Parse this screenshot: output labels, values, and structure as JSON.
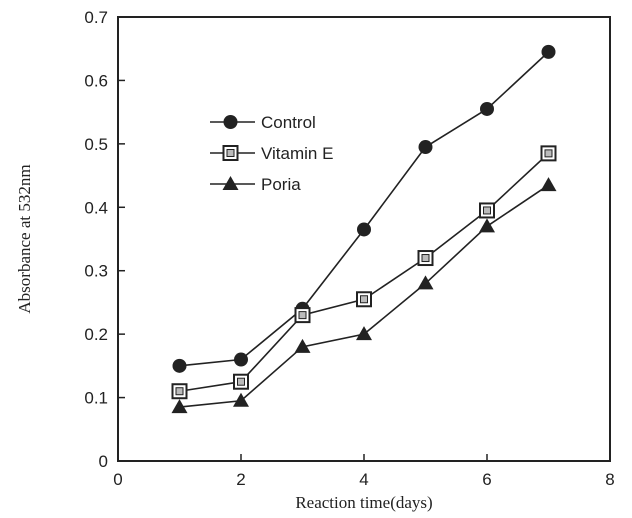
{
  "chart_data": {
    "type": "line",
    "title": "",
    "xlabel": "Reaction time(days)",
    "ylabel": "Absorbance at 532nm",
    "xlim": [
      0,
      8
    ],
    "ylim": [
      0,
      0.7
    ],
    "xticks": [
      0,
      2,
      4,
      6,
      8
    ],
    "yticks": [
      0,
      0.1,
      0.2,
      0.3,
      0.4,
      0.5,
      0.6,
      0.7
    ],
    "xtick_labels": [
      "0",
      "2",
      "4",
      "6",
      "8"
    ],
    "ytick_labels": [
      "0",
      "0.1",
      "0.2",
      "0.3",
      "0.4",
      "0.5",
      "0.6",
      "0.7"
    ],
    "grid": false,
    "legend_position": "top-left",
    "x": [
      1,
      2,
      3,
      4,
      5,
      6,
      7
    ],
    "series": [
      {
        "name": "Control",
        "marker": "circle",
        "color": "#222222",
        "values": [
          0.15,
          0.16,
          0.24,
          0.365,
          0.495,
          0.555,
          0.645
        ]
      },
      {
        "name": "Vitamin E",
        "marker": "square",
        "color": "#222222",
        "values": [
          0.11,
          0.125,
          0.23,
          0.255,
          0.32,
          0.395,
          0.485
        ]
      },
      {
        "name": "Poria",
        "marker": "triangle",
        "color": "#222222",
        "values": [
          0.085,
          0.095,
          0.18,
          0.2,
          0.28,
          0.37,
          0.435
        ]
      }
    ]
  }
}
